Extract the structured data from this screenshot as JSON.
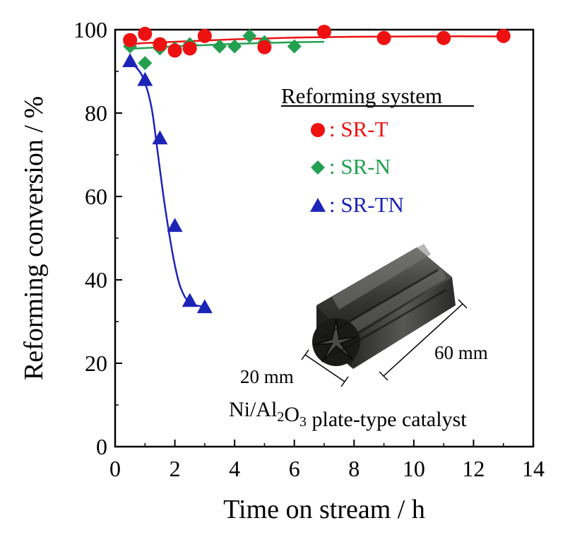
{
  "chart_data": {
    "type": "scatter",
    "xlabel": "Time on stream / h",
    "ylabel": "Reforming conversion / %",
    "xlim": [
      0,
      14
    ],
    "ylim": [
      0,
      100
    ],
    "xticks": [
      "0",
      "2",
      "4",
      "6",
      "8",
      "10",
      "12",
      "14"
    ],
    "yticks": [
      "0",
      "20",
      "40",
      "60",
      "80",
      "100"
    ],
    "grid": false,
    "legend": {
      "title": "Reforming system",
      "placement": "inside-top-right",
      "entries": [
        {
          "label": ": SR-T",
          "series": 0
        },
        {
          "label": ": SR-N",
          "series": 1
        },
        {
          "label": ": SR-TN",
          "series": 2
        }
      ]
    },
    "series": [
      {
        "name": "SR-T",
        "marker": "circle",
        "color": "#ee1111",
        "x": [
          0.5,
          1,
          1.5,
          2,
          2.5,
          3,
          5,
          7,
          9,
          11,
          13
        ],
        "y": [
          97.5,
          99,
          96.5,
          95,
          95.5,
          98.5,
          95.8,
          99.5,
          98,
          98,
          98.5
        ],
        "fit_x": [
          0.5,
          1,
          2,
          3,
          4,
          5,
          6,
          7,
          8,
          10,
          13
        ],
        "fit_y": [
          96.5,
          96.8,
          97.1,
          97.4,
          97.7,
          97.9,
          98.1,
          98.2,
          98.3,
          98.4,
          98.4
        ]
      },
      {
        "name": "SR-N",
        "marker": "diamond",
        "color": "#22a050",
        "x": [
          0.5,
          1,
          1.5,
          2,
          2.5,
          3.5,
          4,
          4.5,
          5,
          6
        ],
        "y": [
          96,
          92,
          95.5,
          95.5,
          96.5,
          96,
          96,
          98.5,
          97,
          96
        ],
        "fit_x": [
          0.4,
          1,
          2,
          3,
          4,
          5,
          6,
          7
        ],
        "fit_y": [
          95.4,
          95.6,
          96.0,
          96.3,
          96.6,
          96.8,
          97.0,
          97.1
        ]
      },
      {
        "name": "SR-TN",
        "marker": "triangle",
        "color": "#1c24b8",
        "x": [
          0.5,
          1,
          1.5,
          2,
          2.5,
          3
        ],
        "y": [
          92.5,
          88,
          74,
          53,
          35,
          33.5
        ],
        "fit_x": [
          0.5,
          0.9,
          1.2,
          1.4,
          1.6,
          1.8,
          2.0,
          2.2,
          2.5,
          3.0
        ],
        "fit_y": [
          92.5,
          89.0,
          82.0,
          72.0,
          61.0,
          51.5,
          43.5,
          38.0,
          34.5,
          33.5
        ]
      }
    ],
    "inset": {
      "caption": "Ni/Al2O3 plate-type catalyst",
      "dim_width": "20 mm",
      "dim_length": "60 mm"
    }
  },
  "colors": {
    "axis": "#000000",
    "sr_t": "#ee1111",
    "sr_n": "#22a050",
    "sr_tn": "#1c24b8"
  }
}
